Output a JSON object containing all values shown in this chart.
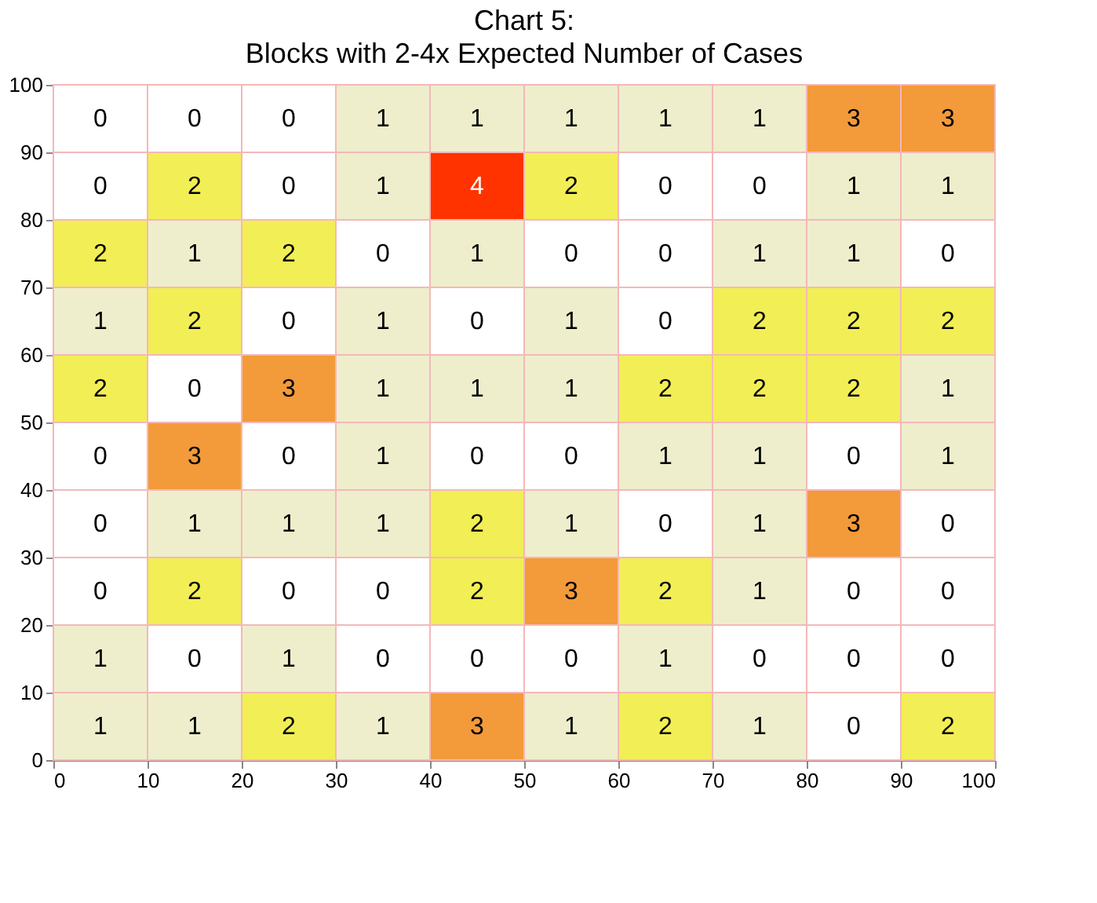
{
  "chart_data": {
    "type": "heatmap",
    "title": "Chart 5:",
    "subtitle": "Blocks with 2-4x Expected Number of Cases",
    "cells": [
      [
        0,
        0,
        0,
        1,
        1,
        1,
        1,
        1,
        3,
        3
      ],
      [
        0,
        2,
        0,
        1,
        4,
        2,
        0,
        0,
        1,
        1
      ],
      [
        2,
        1,
        2,
        0,
        1,
        0,
        0,
        1,
        1,
        0
      ],
      [
        1,
        2,
        0,
        1,
        0,
        1,
        0,
        2,
        2,
        2
      ],
      [
        2,
        0,
        3,
        1,
        1,
        1,
        2,
        2,
        2,
        1
      ],
      [
        0,
        3,
        0,
        1,
        0,
        0,
        1,
        1,
        0,
        1
      ],
      [
        0,
        1,
        1,
        1,
        2,
        1,
        0,
        1,
        3,
        0
      ],
      [
        0,
        2,
        0,
        0,
        2,
        3,
        2,
        1,
        0,
        0
      ],
      [
        1,
        0,
        1,
        0,
        0,
        0,
        1,
        0,
        0,
        0
      ],
      [
        1,
        1,
        2,
        1,
        3,
        1,
        2,
        1,
        0,
        2
      ]
    ],
    "colors": [
      "#ffffff",
      "#eeeecc",
      "#f2ee55",
      "#f39a3a",
      "#ff3300"
    ],
    "xlim": [
      0,
      100
    ],
    "xticks": [
      0,
      10,
      20,
      30,
      40,
      50,
      60,
      70,
      80,
      90,
      100
    ],
    "ylim": [
      0,
      100
    ],
    "yticks": [
      0,
      10,
      20,
      30,
      40,
      50,
      60,
      70,
      80,
      90,
      100
    ],
    "data_labels": true,
    "grid": false
  }
}
